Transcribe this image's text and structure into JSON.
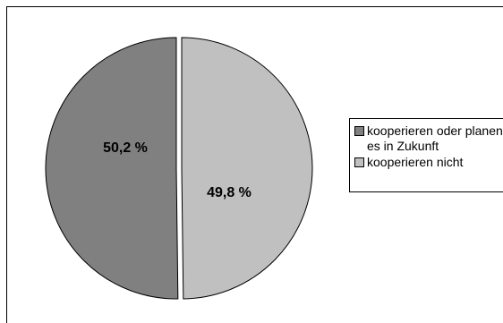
{
  "chart_data": {
    "type": "pie",
    "title": "",
    "slices": [
      {
        "label": "kooperieren oder planen es in Zukunft",
        "value": 50.2,
        "display": "50,2 %",
        "color": "#808080"
      },
      {
        "label": "kooperieren nicht",
        "value": 49.8,
        "display": "49,8 %",
        "color": "#c0c0c0"
      }
    ],
    "legend_position": "right"
  }
}
